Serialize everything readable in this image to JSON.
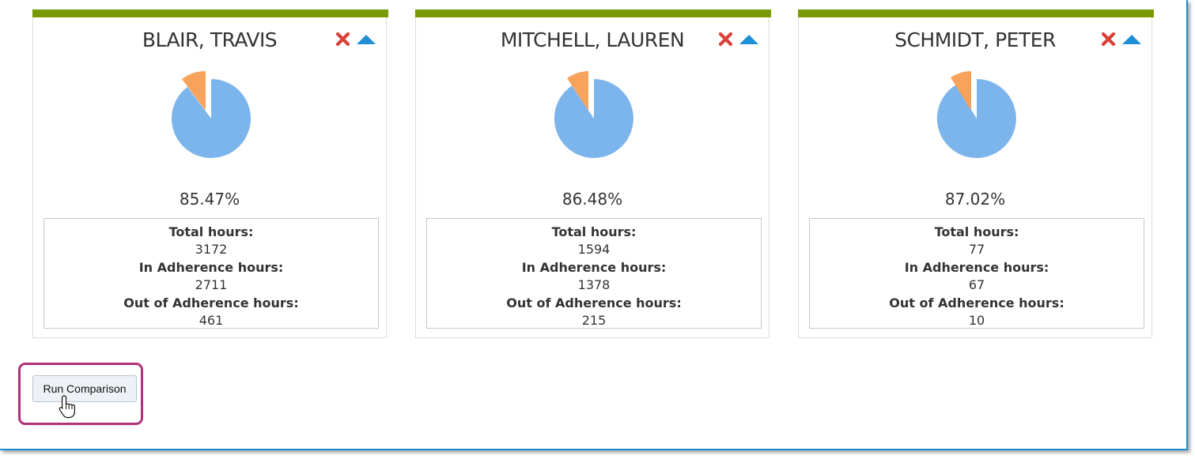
{
  "cards": [
    {
      "name": "BLAIR, TRAVIS",
      "percent": "85.47%",
      "total_label": "Total hours:",
      "total_value": "3172",
      "in_label": "In Adherence hours:",
      "in_value": "2711",
      "out_label": "Out of Adherence hours:",
      "out_value": "461"
    },
    {
      "name": "MITCHELL, LAUREN",
      "percent": "86.48%",
      "total_label": "Total hours:",
      "total_value": "1594",
      "in_label": "In Adherence hours:",
      "in_value": "1378",
      "out_label": "Out of Adherence hours:",
      "out_value": "215"
    },
    {
      "name": "SCHMIDT, PETER",
      "percent": "87.02%",
      "total_label": "Total hours:",
      "total_value": "77",
      "in_label": "In Adherence hours:",
      "in_value": "67",
      "out_label": "Out of Adherence hours:",
      "out_value": "10"
    }
  ],
  "run_button_label": "Run Comparison",
  "colors": {
    "card_bar": "#7a9a01",
    "pie_in": "#7cb5ec",
    "pie_out": "#f7a35c",
    "remove_icon": "#d9403a",
    "collapse_icon": "#1e8fd6",
    "highlight": "#b0307a",
    "frame": "#1b8fd1"
  },
  "icons": {
    "remove": "close-icon",
    "collapse": "triangle-up-icon",
    "cursor": "hand-pointer-icon"
  }
}
